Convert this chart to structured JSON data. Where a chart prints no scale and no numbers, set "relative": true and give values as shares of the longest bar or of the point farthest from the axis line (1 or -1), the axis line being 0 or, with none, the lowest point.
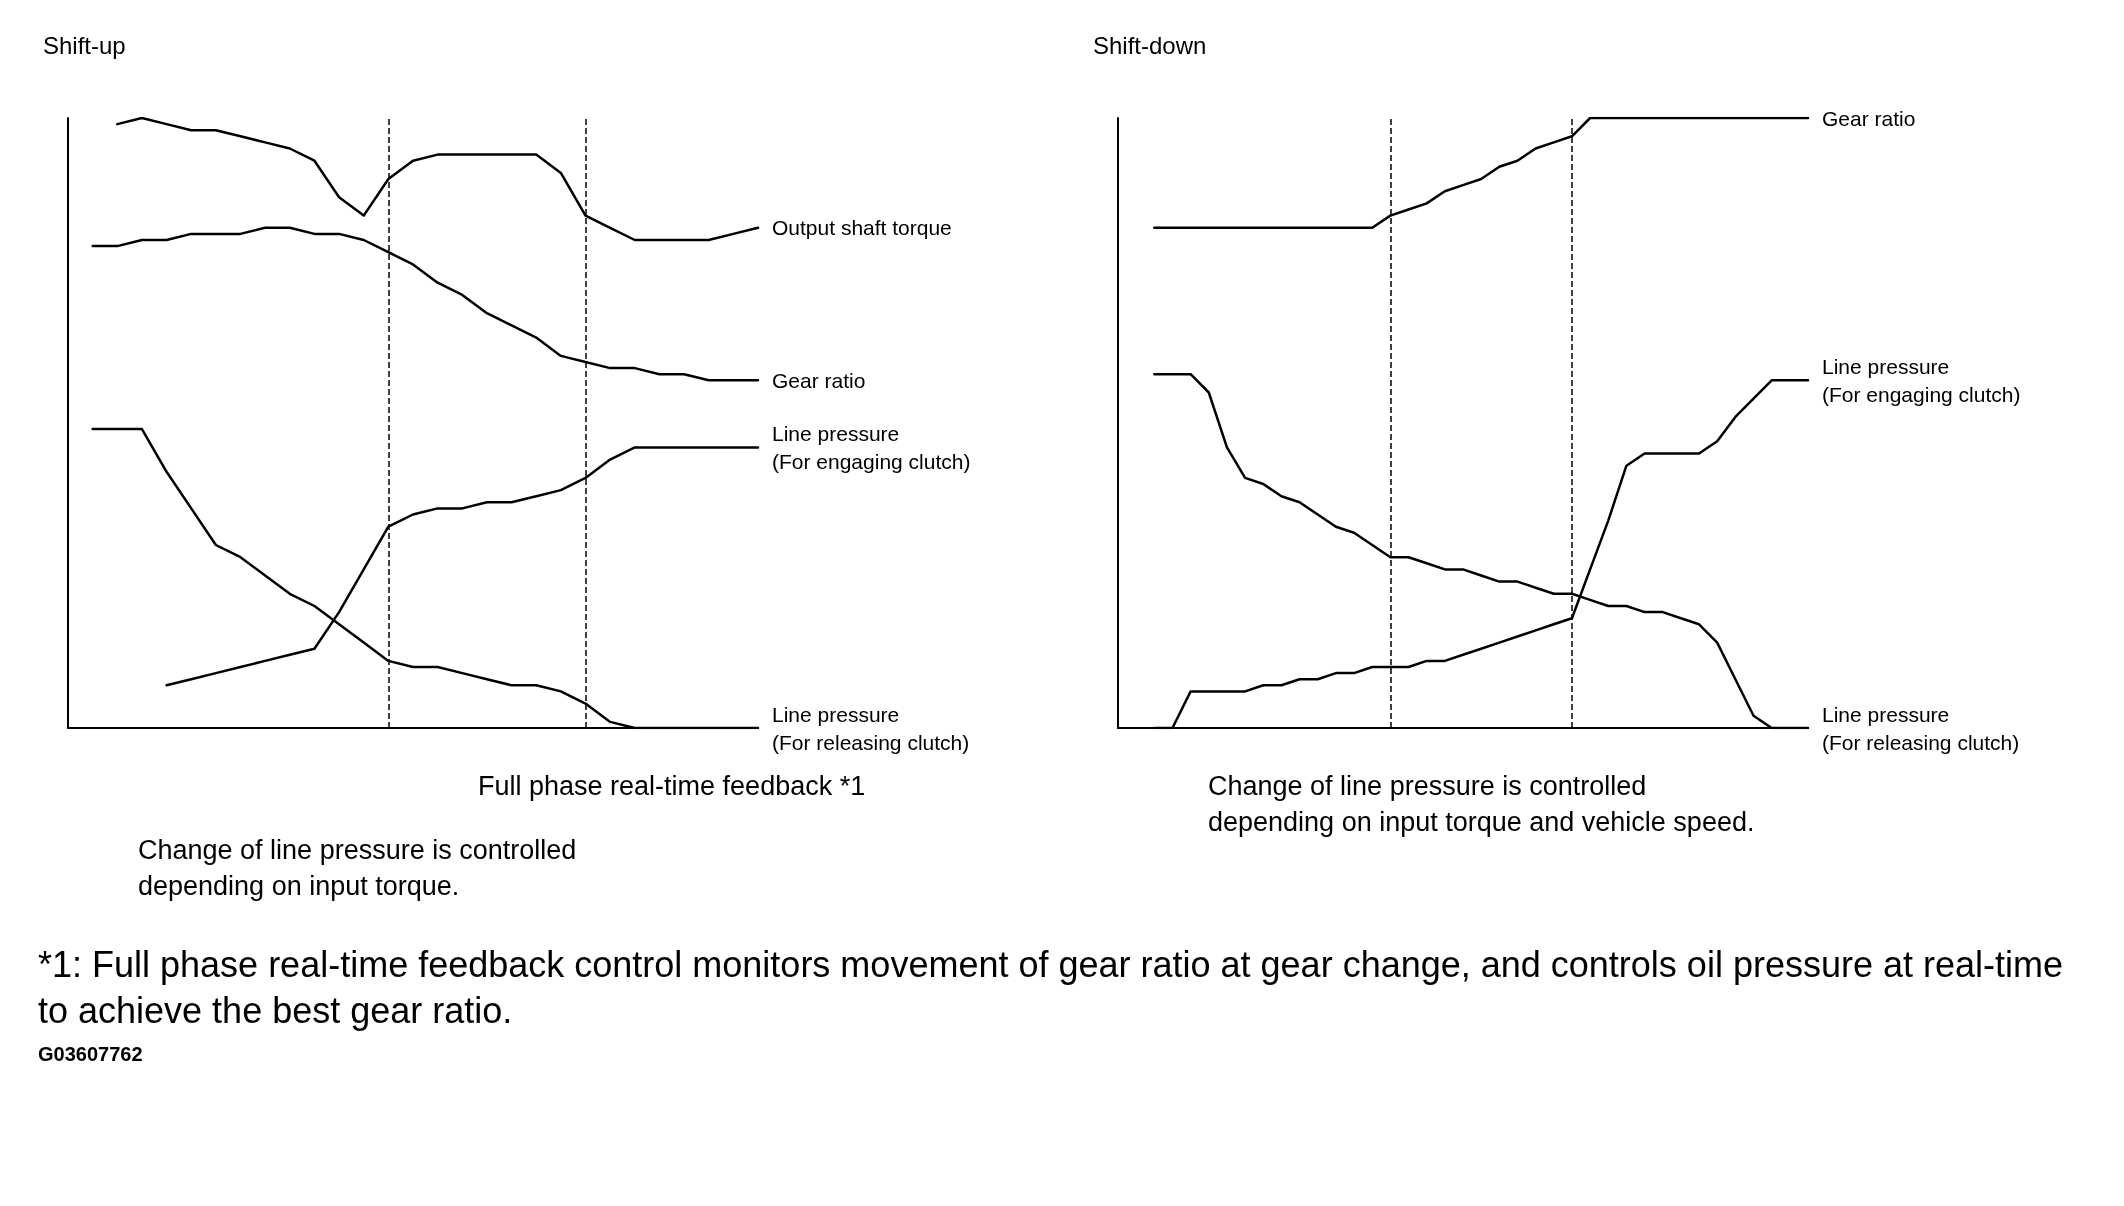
{
  "chart_data": [
    {
      "type": "line",
      "title": "Shift-up",
      "relative": true,
      "grid": false,
      "line_style": "solid",
      "categories": [
        null,
        null,
        null,
        null,
        null,
        null,
        null,
        null,
        null,
        null,
        null,
        null,
        null,
        null,
        null,
        null,
        null,
        null,
        null,
        null,
        null,
        null,
        null,
        null,
        null,
        null,
        null,
        null,
        null
      ],
      "series": [
        {
          "name": "Output shaft torque",
          "color": "#000000",
          "values": [
            null,
            null,
            0.99,
            1.0,
            0.99,
            0.98,
            0.98,
            0.97,
            0.96,
            0.95,
            0.93,
            0.87,
            0.84,
            0.9,
            0.93,
            0.94,
            0.94,
            0.94,
            0.94,
            0.94,
            0.91,
            0.84,
            0.82,
            0.8,
            0.8,
            0.8,
            0.8,
            0.81,
            0.82
          ]
        },
        {
          "name": "Gear ratio",
          "color": "#000000",
          "values": [
            null,
            0.79,
            0.79,
            0.8,
            0.8,
            0.81,
            0.81,
            0.81,
            0.82,
            0.82,
            0.81,
            0.81,
            0.8,
            0.78,
            0.76,
            0.73,
            0.71,
            0.68,
            0.66,
            0.64,
            0.61,
            0.6,
            0.59,
            0.59,
            0.58,
            0.58,
            0.57,
            0.57,
            0.57
          ]
        },
        {
          "name": "Line pressure (For engaging clutch)",
          "color": "#000000",
          "values": [
            null,
            null,
            null,
            null,
            0.07,
            0.08,
            0.09,
            0.1,
            0.11,
            0.12,
            0.13,
            0.19,
            0.26,
            0.33,
            0.35,
            0.36,
            0.36,
            0.37,
            0.37,
            0.38,
            0.39,
            0.41,
            0.44,
            0.46,
            0.46,
            0.46,
            0.46,
            0.46,
            0.46
          ]
        },
        {
          "name": "Line pressure (For releasing clutch)",
          "color": "#000000",
          "values": [
            null,
            0.49,
            0.49,
            0.49,
            0.42,
            0.36,
            0.3,
            0.28,
            0.25,
            0.22,
            0.2,
            0.17,
            0.14,
            0.11,
            0.1,
            0.1,
            0.09,
            0.08,
            0.07,
            0.07,
            0.06,
            0.04,
            0.01,
            0,
            0,
            0,
            0,
            0,
            0
          ]
        }
      ],
      "annotations": [
        "Full phase real-time feedback *1",
        "Change of line pressure is controlled depending on input torque.",
        "*1: Full phase real-time feedback control monitors movement of gear ratio at gear change, and controls oil pressure at real-time to achieve the best gear ratio.",
        "G03607762"
      ]
    },
    {
      "type": "line",
      "title": "Shift-down",
      "relative": true,
      "grid": false,
      "line_style": "solid",
      "categories": [
        null,
        null,
        null,
        null,
        null,
        null,
        null,
        null,
        null,
        null,
        null,
        null,
        null,
        null,
        null,
        null,
        null,
        null,
        null,
        null,
        null,
        null,
        null,
        null,
        null,
        null,
        null,
        null,
        null,
        null,
        null,
        null,
        null,
        null,
        null,
        null,
        null,
        null,
        null
      ],
      "series": [
        {
          "name": "Gear ratio",
          "color": "#000000",
          "values": [
            null,
            null,
            0.82,
            0.82,
            0.82,
            0.82,
            0.82,
            0.82,
            0.82,
            0.82,
            0.82,
            0.82,
            0.82,
            0.82,
            0.82,
            0.84,
            0.85,
            0.86,
            0.88,
            0.89,
            0.9,
            0.92,
            0.93,
            0.95,
            0.96,
            0.97,
            1.0,
            1.0,
            1.0,
            1.0,
            1.0,
            1.0,
            1.0,
            1.0,
            1.0,
            1.0,
            1.0,
            1.0,
            1.0
          ]
        },
        {
          "name": "Line pressure (For engaging clutch)",
          "color": "#000000",
          "values": [
            null,
            null,
            0,
            0,
            0.06,
            0.06,
            0.06,
            0.06,
            0.07,
            0.07,
            0.08,
            0.08,
            0.09,
            0.09,
            0.1,
            0.1,
            0.1,
            0.11,
            0.11,
            0.12,
            0.13,
            0.14,
            0.15,
            0.16,
            0.17,
            0.18,
            0.26,
            0.34,
            0.43,
            0.45,
            0.45,
            0.45,
            0.45,
            0.47,
            0.51,
            0.54,
            0.57,
            0.57,
            0.57
          ]
        },
        {
          "name": "Line pressure (For releasing clutch)",
          "color": "#000000",
          "values": [
            null,
            null,
            0.58,
            0.58,
            0.58,
            0.55,
            0.46,
            0.41,
            0.4,
            0.38,
            0.37,
            0.35,
            0.33,
            0.32,
            0.3,
            0.28,
            0.28,
            0.27,
            0.26,
            0.26,
            0.25,
            0.24,
            0.24,
            0.23,
            0.22,
            0.22,
            0.21,
            0.2,
            0.2,
            0.19,
            0.19,
            0.18,
            0.17,
            0.14,
            0.08,
            0.02,
            0,
            0,
            0
          ]
        }
      ],
      "annotations": [
        "Change of line pressure is controlled depending on input torque and vehicle speed."
      ]
    }
  ]
}
